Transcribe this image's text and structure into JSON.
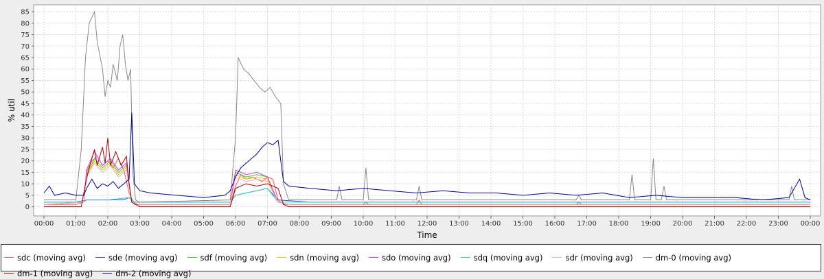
{
  "chart_data": {
    "type": "line",
    "xlabel": "Time",
    "ylabel": "% util",
    "xlim": [
      0,
      1440
    ],
    "ylim": [
      -4,
      88
    ],
    "x_tick_labels": [
      "00:00",
      "01:00",
      "02:00",
      "03:00",
      "04:00",
      "05:00",
      "06:00",
      "07:00",
      "08:00",
      "09:00",
      "10:00",
      "11:00",
      "12:00",
      "13:00",
      "14:00",
      "15:00",
      "16:00",
      "17:00",
      "18:00",
      "19:00",
      "20:00",
      "21:00",
      "22:00",
      "23:00",
      "00:00"
    ],
    "y_ticks": [
      0,
      5,
      10,
      15,
      20,
      25,
      30,
      35,
      40,
      45,
      50,
      55,
      60,
      65,
      70,
      75,
      80,
      85
    ],
    "grid": true,
    "legend_position": "bottom",
    "colors": {
      "plot_background": "#ffffff",
      "gridline": "#d7d7d7",
      "page_background": "#eeeeee"
    },
    "series": [
      {
        "name": "sdc (moving avg)",
        "color": "#ff5555",
        "points": [
          [
            0,
            1
          ],
          [
            60,
            1
          ],
          [
            75,
            2
          ],
          [
            80,
            15
          ],
          [
            90,
            20
          ],
          [
            100,
            22
          ],
          [
            110,
            18
          ],
          [
            120,
            20
          ],
          [
            130,
            17
          ],
          [
            140,
            21
          ],
          [
            150,
            16
          ],
          [
            160,
            6
          ],
          [
            170,
            1
          ],
          [
            180,
            1
          ],
          [
            350,
            1
          ],
          [
            360,
            9
          ],
          [
            370,
            14
          ],
          [
            380,
            12
          ],
          [
            390,
            13
          ],
          [
            400,
            12
          ],
          [
            410,
            11
          ],
          [
            420,
            13
          ],
          [
            430,
            12
          ],
          [
            440,
            3
          ],
          [
            450,
            1
          ],
          [
            600,
            1
          ],
          [
            605,
            2
          ],
          [
            610,
            1
          ],
          [
            700,
            1
          ],
          [
            705,
            3
          ],
          [
            710,
            1
          ],
          [
            1000,
            1
          ],
          [
            1005,
            2
          ],
          [
            1010,
            1
          ],
          [
            1440,
            1
          ]
        ]
      },
      {
        "name": "sde (moving avg)",
        "color": "#3355cc",
        "points": [
          [
            0,
            2
          ],
          [
            60,
            2
          ],
          [
            80,
            3
          ],
          [
            100,
            3
          ],
          [
            130,
            3
          ],
          [
            150,
            3
          ],
          [
            160,
            4
          ],
          [
            170,
            2
          ],
          [
            250,
            2
          ],
          [
            350,
            2
          ],
          [
            360,
            5
          ],
          [
            380,
            6
          ],
          [
            400,
            7
          ],
          [
            420,
            8
          ],
          [
            440,
            3
          ],
          [
            500,
            2
          ],
          [
            600,
            2
          ],
          [
            800,
            2
          ],
          [
            1000,
            2
          ],
          [
            1200,
            2
          ],
          [
            1440,
            2
          ]
        ]
      },
      {
        "name": "sdf (moving avg)",
        "color": "#33cc33",
        "points": [
          [
            0,
            1
          ],
          [
            75,
            2
          ],
          [
            80,
            14
          ],
          [
            95,
            21
          ],
          [
            110,
            17
          ],
          [
            125,
            20
          ],
          [
            140,
            15
          ],
          [
            155,
            18
          ],
          [
            165,
            2
          ],
          [
            180,
            1
          ],
          [
            350,
            1
          ],
          [
            360,
            15
          ],
          [
            380,
            13
          ],
          [
            400,
            14
          ],
          [
            420,
            13
          ],
          [
            440,
            2
          ],
          [
            460,
            1
          ],
          [
            1440,
            1
          ]
        ]
      },
      {
        "name": "sdn (moving avg)",
        "color": "#ddcc00",
        "points": [
          [
            0,
            1
          ],
          [
            75,
            2
          ],
          [
            80,
            13
          ],
          [
            95,
            20
          ],
          [
            110,
            16
          ],
          [
            125,
            19
          ],
          [
            140,
            14
          ],
          [
            155,
            17
          ],
          [
            165,
            2
          ],
          [
            180,
            1
          ],
          [
            350,
            1
          ],
          [
            360,
            14
          ],
          [
            380,
            12
          ],
          [
            400,
            13
          ],
          [
            420,
            12
          ],
          [
            440,
            2
          ],
          [
            460,
            1
          ],
          [
            1440,
            1
          ]
        ]
      },
      {
        "name": "sdo (moving avg)",
        "color": "#dd33dd",
        "points": [
          [
            0,
            1
          ],
          [
            75,
            2
          ],
          [
            80,
            16
          ],
          [
            95,
            24
          ],
          [
            110,
            18
          ],
          [
            125,
            21
          ],
          [
            140,
            16
          ],
          [
            155,
            19
          ],
          [
            165,
            2
          ],
          [
            180,
            1
          ],
          [
            350,
            1
          ],
          [
            360,
            16
          ],
          [
            380,
            14
          ],
          [
            400,
            15
          ],
          [
            420,
            13
          ],
          [
            440,
            2
          ],
          [
            460,
            1
          ],
          [
            1440,
            1
          ]
        ]
      },
      {
        "name": "sdq (moving avg)",
        "color": "#33cccc",
        "points": [
          [
            0,
            2
          ],
          [
            75,
            2
          ],
          [
            80,
            3
          ],
          [
            120,
            3
          ],
          [
            160,
            4
          ],
          [
            170,
            2
          ],
          [
            350,
            2
          ],
          [
            360,
            5
          ],
          [
            380,
            6
          ],
          [
            400,
            7
          ],
          [
            420,
            8
          ],
          [
            440,
            2
          ],
          [
            1440,
            2
          ]
        ]
      },
      {
        "name": "sdr (moving avg)",
        "color": "#ffaaaa",
        "points": [
          [
            0,
            1
          ],
          [
            75,
            2
          ],
          [
            80,
            13
          ],
          [
            95,
            19
          ],
          [
            110,
            15
          ],
          [
            125,
            18
          ],
          [
            140,
            13
          ],
          [
            155,
            16
          ],
          [
            165,
            2
          ],
          [
            180,
            1
          ],
          [
            350,
            1
          ],
          [
            360,
            13
          ],
          [
            380,
            11
          ],
          [
            400,
            12
          ],
          [
            420,
            11
          ],
          [
            440,
            2
          ],
          [
            460,
            1
          ],
          [
            1440,
            1
          ]
        ]
      },
      {
        "name": "dm-0 (moving avg)",
        "color": "#888888",
        "points": [
          [
            0,
            3
          ],
          [
            60,
            3
          ],
          [
            70,
            25
          ],
          [
            78,
            65
          ],
          [
            85,
            80
          ],
          [
            95,
            85
          ],
          [
            100,
            72
          ],
          [
            110,
            60
          ],
          [
            115,
            48
          ],
          [
            120,
            55
          ],
          [
            125,
            52
          ],
          [
            130,
            62
          ],
          [
            138,
            55
          ],
          [
            143,
            70
          ],
          [
            148,
            75
          ],
          [
            153,
            62
          ],
          [
            158,
            55
          ],
          [
            163,
            60
          ],
          [
            167,
            15
          ],
          [
            172,
            3
          ],
          [
            180,
            2
          ],
          [
            350,
            3
          ],
          [
            360,
            30
          ],
          [
            365,
            65
          ],
          [
            375,
            60
          ],
          [
            385,
            58
          ],
          [
            395,
            55
          ],
          [
            405,
            52
          ],
          [
            415,
            50
          ],
          [
            425,
            52
          ],
          [
            435,
            48
          ],
          [
            445,
            45
          ],
          [
            450,
            10
          ],
          [
            460,
            3
          ],
          [
            550,
            3
          ],
          [
            555,
            9
          ],
          [
            560,
            3
          ],
          [
            600,
            3
          ],
          [
            605,
            17
          ],
          [
            610,
            3
          ],
          [
            700,
            3
          ],
          [
            705,
            9
          ],
          [
            710,
            3
          ],
          [
            1000,
            3
          ],
          [
            1005,
            5
          ],
          [
            1010,
            3
          ],
          [
            1100,
            3
          ],
          [
            1105,
            14
          ],
          [
            1110,
            3
          ],
          [
            1140,
            3
          ],
          [
            1145,
            21
          ],
          [
            1150,
            3
          ],
          [
            1160,
            3
          ],
          [
            1165,
            9
          ],
          [
            1170,
            3
          ],
          [
            1400,
            3
          ],
          [
            1405,
            9
          ],
          [
            1410,
            3
          ],
          [
            1440,
            3
          ]
        ]
      },
      {
        "name": "dm-1 (moving avg)",
        "color": "#aa0000",
        "points": [
          [
            0,
            0
          ],
          [
            70,
            0
          ],
          [
            78,
            10
          ],
          [
            85,
            17
          ],
          [
            95,
            25
          ],
          [
            100,
            18
          ],
          [
            110,
            26
          ],
          [
            115,
            19
          ],
          [
            120,
            30
          ],
          [
            125,
            18
          ],
          [
            135,
            24
          ],
          [
            145,
            18
          ],
          [
            155,
            22
          ],
          [
            160,
            10
          ],
          [
            165,
            2
          ],
          [
            180,
            0
          ],
          [
            350,
            0
          ],
          [
            360,
            8
          ],
          [
            380,
            10
          ],
          [
            400,
            9
          ],
          [
            420,
            10
          ],
          [
            440,
            8
          ],
          [
            450,
            1
          ],
          [
            460,
            0
          ],
          [
            1440,
            0
          ]
        ]
      },
      {
        "name": "dm-2 (moving avg)",
        "color": "#000099",
        "points": [
          [
            0,
            6
          ],
          [
            10,
            9
          ],
          [
            20,
            5
          ],
          [
            40,
            6
          ],
          [
            60,
            5
          ],
          [
            75,
            5
          ],
          [
            80,
            8
          ],
          [
            90,
            12
          ],
          [
            100,
            8
          ],
          [
            110,
            10
          ],
          [
            120,
            9
          ],
          [
            130,
            11
          ],
          [
            140,
            8
          ],
          [
            150,
            10
          ],
          [
            160,
            12
          ],
          [
            165,
            41
          ],
          [
            170,
            10
          ],
          [
            180,
            7
          ],
          [
            200,
            6
          ],
          [
            250,
            5
          ],
          [
            300,
            4
          ],
          [
            340,
            5
          ],
          [
            350,
            7
          ],
          [
            360,
            13
          ],
          [
            370,
            17
          ],
          [
            380,
            19
          ],
          [
            390,
            21
          ],
          [
            400,
            23
          ],
          [
            410,
            26
          ],
          [
            420,
            28
          ],
          [
            430,
            27
          ],
          [
            440,
            29
          ],
          [
            450,
            11
          ],
          [
            460,
            9
          ],
          [
            500,
            8
          ],
          [
            550,
            7
          ],
          [
            600,
            8
          ],
          [
            650,
            7
          ],
          [
            700,
            6
          ],
          [
            750,
            7
          ],
          [
            800,
            6
          ],
          [
            850,
            6
          ],
          [
            900,
            5
          ],
          [
            950,
            6
          ],
          [
            1000,
            5
          ],
          [
            1050,
            6
          ],
          [
            1100,
            4
          ],
          [
            1150,
            5
          ],
          [
            1200,
            4
          ],
          [
            1250,
            4
          ],
          [
            1300,
            4
          ],
          [
            1350,
            3
          ],
          [
            1400,
            4
          ],
          [
            1420,
            12
          ],
          [
            1430,
            4
          ],
          [
            1440,
            3
          ]
        ]
      }
    ]
  }
}
